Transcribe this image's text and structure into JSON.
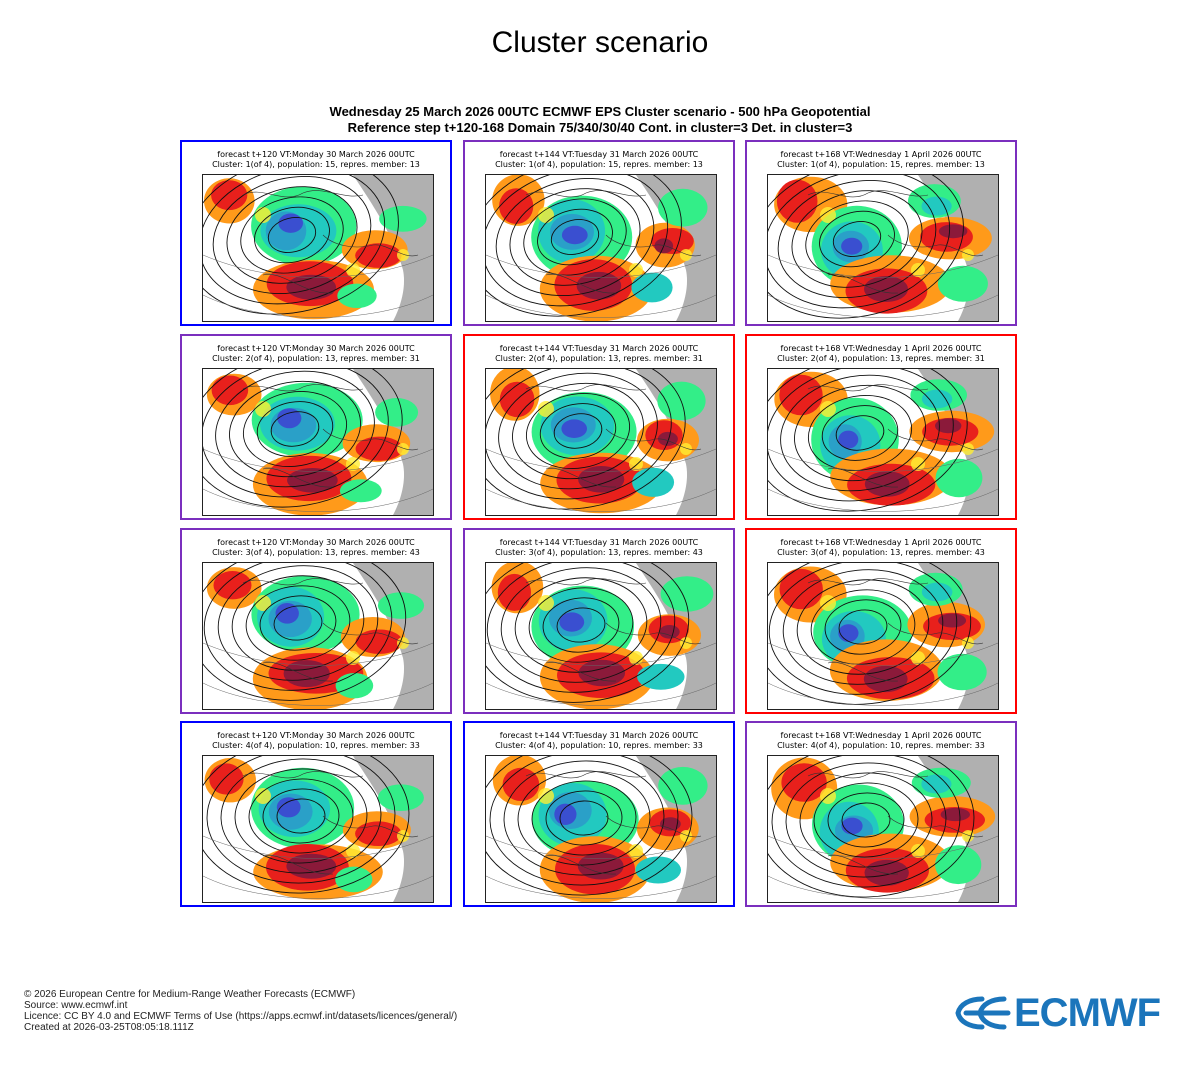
{
  "page": {
    "title": "Cluster scenario"
  },
  "chart_data": {
    "type": "map-panels",
    "title_line1": "Wednesday 25 March 2026 00UTC ECMWF EPS Cluster scenario - 500 hPa Geopotential",
    "title_line2": "Reference step t+120-168 Domain 75/340/30/40 Cont. in cluster=3 Det. in cluster=3",
    "rows": 4,
    "columns": 3,
    "colors": {
      "blue": "#0000ff",
      "purple": "#7b2fbe",
      "red": "#ff0000",
      "ocean_gray": "#b0b0b0",
      "strong_positive": "#8b1a3a",
      "positive": "#e8201c",
      "weak_positive": "#ff9a1a",
      "slight_positive": "#ffee33",
      "slight_negative": "#33ee88",
      "weak_negative": "#22c9c0",
      "negative": "#2aa0c8",
      "strong_negative": "#3a4fd0"
    },
    "panels": [
      {
        "line1": "forecast t+120 VT:Monday 30 March 2026 00UTC",
        "line2": "Cluster: 1(of 4), population: 15, repres. member: 13",
        "cluster": 1,
        "step": 120,
        "frame": "blue"
      },
      {
        "line1": "forecast t+144 VT:Tuesday 31 March 2026 00UTC",
        "line2": "Cluster: 1(of 4), population: 15, repres. member: 13",
        "cluster": 1,
        "step": 144,
        "frame": "purple"
      },
      {
        "line1": "forecast t+168 VT:Wednesday 1 April 2026 00UTC",
        "line2": "Cluster: 1(of 4), population: 15, repres. member: 13",
        "cluster": 1,
        "step": 168,
        "frame": "purple"
      },
      {
        "line1": "forecast t+120 VT:Monday 30 March 2026 00UTC",
        "line2": "Cluster: 2(of 4), population: 13, repres. member: 31",
        "cluster": 2,
        "step": 120,
        "frame": "purple"
      },
      {
        "line1": "forecast t+144 VT:Tuesday 31 March 2026 00UTC",
        "line2": "Cluster: 2(of 4), population: 13, repres. member: 31",
        "cluster": 2,
        "step": 144,
        "frame": "red"
      },
      {
        "line1": "forecast t+168 VT:Wednesday 1 April 2026 00UTC",
        "line2": "Cluster: 2(of 4), population: 13, repres. member: 31",
        "cluster": 2,
        "step": 168,
        "frame": "red"
      },
      {
        "line1": "forecast t+120 VT:Monday 30 March 2026 00UTC",
        "line2": "Cluster: 3(of 4), population: 13, repres. member: 43",
        "cluster": 3,
        "step": 120,
        "frame": "purple"
      },
      {
        "line1": "forecast t+144 VT:Tuesday 31 March 2026 00UTC",
        "line2": "Cluster: 3(of 4), population: 13, repres. member: 43",
        "cluster": 3,
        "step": 144,
        "frame": "purple"
      },
      {
        "line1": "forecast t+168 VT:Wednesday 1 April 2026 00UTC",
        "line2": "Cluster: 3(of 4), population: 13, repres. member: 43",
        "cluster": 3,
        "step": 168,
        "frame": "red"
      },
      {
        "line1": "forecast t+120 VT:Monday 30 March 2026 00UTC",
        "line2": "Cluster: 4(of 4), population: 10, repres. member: 33",
        "cluster": 4,
        "step": 120,
        "frame": "blue"
      },
      {
        "line1": "forecast t+144 VT:Tuesday 31 March 2026 00UTC",
        "line2": "Cluster: 4(of 4), population: 10, repres. member: 33",
        "cluster": 4,
        "step": 144,
        "frame": "blue"
      },
      {
        "line1": "forecast t+168 VT:Wednesday 1 April 2026 00UTC",
        "line2": "Cluster: 4(of 4), population: 10, repres. member: 33",
        "cluster": 4,
        "step": 168,
        "frame": "purple"
      }
    ]
  },
  "footer": {
    "copyright": "© 2026 European Centre for Medium-Range Weather Forecasts (ECMWF)",
    "source": "Source: www.ecmwf.int",
    "licence": "Licence: CC BY 4.0 and ECMWF Terms of Use (https://apps.ecmwf.int/datasets/licences/general/)",
    "created": "Created at 2026-03-25T08:05:18.111Z"
  },
  "logo": {
    "text": "ECMWF",
    "icon": "ecmwf-logo-icon",
    "color": "#1b75bb"
  }
}
